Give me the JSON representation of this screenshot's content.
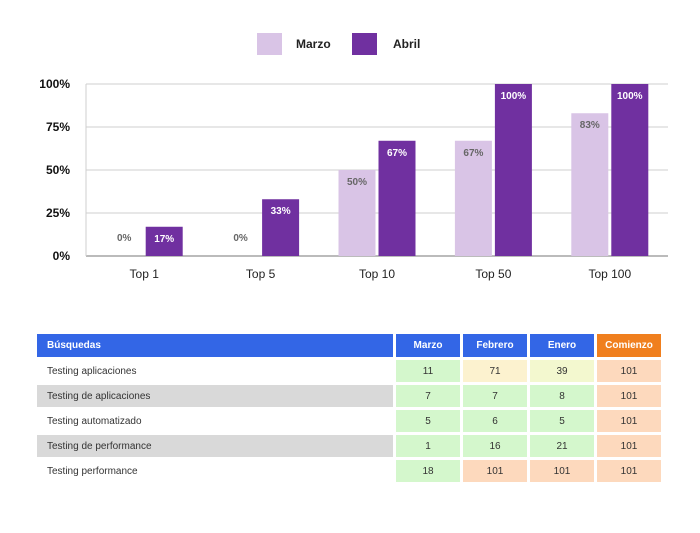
{
  "chart_data": {
    "type": "bar",
    "categories": [
      "Top 1",
      "Top 5",
      "Top 10",
      "Top 50",
      "Top 100"
    ],
    "series": [
      {
        "name": "Marzo",
        "values": [
          0,
          0,
          50,
          67,
          83
        ],
        "labels": [
          "0%",
          "0%",
          "50%",
          "67%",
          "83%"
        ],
        "color": "#d9c4e6"
      },
      {
        "name": "Abril",
        "values": [
          17,
          33,
          67,
          100,
          100
        ],
        "labels": [
          "17%",
          "33%",
          "67%",
          "100%",
          "100%"
        ],
        "color": "#7030a0"
      }
    ],
    "yticks": [
      "0%",
      "25%",
      "50%",
      "75%",
      "100%"
    ],
    "ylim": [
      0,
      100
    ],
    "title": "",
    "xlabel": "",
    "ylabel": "",
    "legend": "top-center",
    "grid": true
  },
  "table": {
    "headers": [
      "Búsquedas",
      "Marzo",
      "Febrero",
      "Enero",
      "Comienzo"
    ],
    "header_colors": {
      "main": "#3366e6",
      "last": "#f07f1e"
    },
    "rows": [
      {
        "query": "Testing aplicaciones",
        "values": [
          "11",
          "71",
          "39",
          "101"
        ],
        "shades": [
          "green",
          "yellow",
          "ltyellow",
          "peach"
        ]
      },
      {
        "query": "Testing de aplicaciones",
        "values": [
          "7",
          "7",
          "8",
          "101"
        ],
        "shades": [
          "green",
          "green",
          "green",
          "peach"
        ]
      },
      {
        "query": "Testing automatizado",
        "values": [
          "5",
          "6",
          "5",
          "101"
        ],
        "shades": [
          "green",
          "green",
          "green",
          "peach"
        ]
      },
      {
        "query": "Testing de performance",
        "values": [
          "1",
          "16",
          "21",
          "101"
        ],
        "shades": [
          "green",
          "green",
          "green",
          "peach"
        ]
      },
      {
        "query": "Testing performance",
        "values": [
          "18",
          "101",
          "101",
          "101"
        ],
        "shades": [
          "green",
          "peach",
          "peach",
          "peach"
        ]
      }
    ]
  }
}
